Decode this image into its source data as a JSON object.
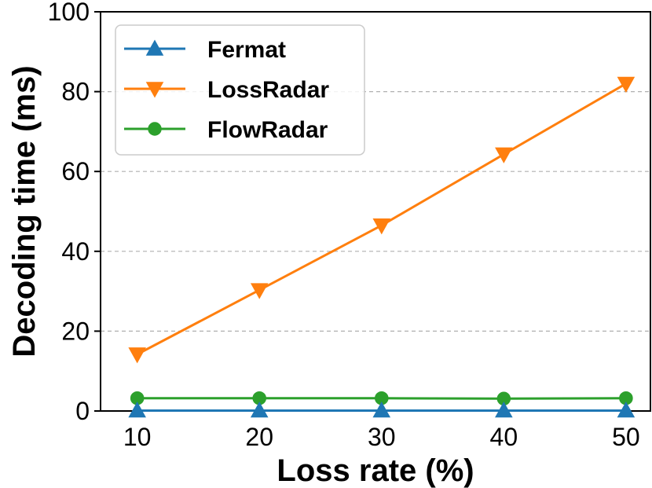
{
  "chart_data": {
    "type": "line",
    "title": "",
    "xlabel": "Loss rate (%)",
    "ylabel": "Decoding time (ms)",
    "x": [
      10,
      20,
      30,
      40,
      50
    ],
    "xlim": [
      7,
      52
    ],
    "ylim": [
      0,
      100
    ],
    "xticks": [
      "10",
      "20",
      "30",
      "40",
      "50"
    ],
    "yticks": [
      "0",
      "20",
      "40",
      "60",
      "80",
      "100"
    ],
    "grid": "horizontal dashed",
    "legend_position": "top-left",
    "series": [
      {
        "name": "Fermat",
        "marker": "triangle-up",
        "color": "#1f77b4",
        "values": [
          0.1,
          0.1,
          0.1,
          0.1,
          0.1
        ]
      },
      {
        "name": "LossRadar",
        "marker": "triangle-down",
        "color": "#ff7f0e",
        "values": [
          14.2,
          30.3,
          46.5,
          64.3,
          82.0
        ]
      },
      {
        "name": "FlowRadar",
        "marker": "circle",
        "color": "#2ca02c",
        "values": [
          3.2,
          3.2,
          3.2,
          3.1,
          3.2
        ]
      }
    ]
  }
}
